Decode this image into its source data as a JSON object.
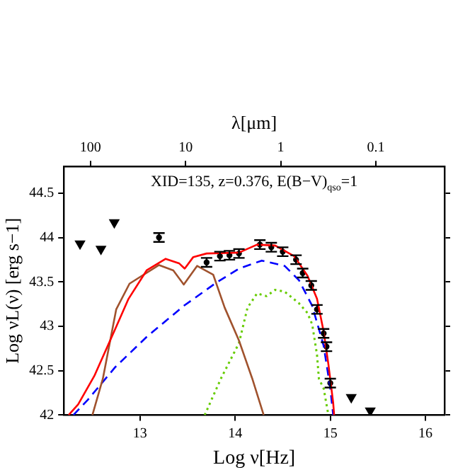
{
  "chart_data": {
    "type": "line",
    "title": "XID=135, z=0.376, E(B−V)$_{qso}$=1",
    "xlabel": "Log ν[Hz]",
    "ylabel": "Log νL(ν) [erg s−1]",
    "x2label": "λ[μm]",
    "xlim": [
      12.2,
      16.2
    ],
    "xticks": [
      13,
      14,
      15,
      16
    ],
    "ylim": [
      42,
      44.8
    ],
    "yticks": [
      42,
      42.5,
      43,
      43.5,
      44,
      44.5
    ],
    "x2lim": [
      190,
      0.019
    ],
    "x2ticks": [
      100,
      10,
      1,
      0.1
    ],
    "log": "x2",
    "grid": false,
    "legend": false,
    "series": [
      {
        "color": "#ff0000",
        "line_style": "solid",
        "marker": "none",
        "x": [
          12.25,
          12.35,
          12.52,
          12.74,
          12.88,
          13.07,
          13.27,
          13.41,
          13.47,
          13.56,
          13.7,
          14.04,
          14.23,
          14.42,
          14.62,
          14.76,
          14.86,
          14.93,
          14.98,
          15.03,
          15.04
        ],
        "values": [
          42.0,
          42.12,
          42.44,
          42.97,
          43.31,
          43.63,
          43.76,
          43.71,
          43.65,
          43.78,
          43.82,
          43.83,
          43.92,
          43.91,
          43.79,
          43.57,
          43.31,
          42.94,
          42.57,
          42.14,
          42.0
        ]
      },
      {
        "color": "#a0522d",
        "line_style": "solid",
        "marker": "none",
        "x": [
          12.5,
          12.61,
          12.75,
          12.89,
          13.2,
          13.35,
          13.46,
          13.6,
          13.77,
          13.89,
          14.04,
          14.18,
          14.3
        ],
        "values": [
          42.0,
          42.41,
          43.19,
          43.48,
          43.69,
          43.63,
          43.47,
          43.68,
          43.58,
          43.21,
          42.84,
          42.41,
          42.0
        ]
      },
      {
        "color": "#0000ff",
        "line_style": "dashed",
        "marker": "none",
        "x": [
          12.3,
          12.45,
          12.74,
          13.07,
          13.46,
          13.8,
          14.04,
          14.28,
          14.52,
          14.67,
          14.81,
          14.93,
          15.0,
          15.03
        ],
        "values": [
          42.0,
          42.17,
          42.54,
          42.88,
          43.23,
          43.49,
          43.65,
          43.74,
          43.68,
          43.52,
          43.23,
          42.78,
          42.3,
          42.0
        ]
      },
      {
        "color": "#66cc00",
        "line_style": "dotted",
        "marker": "none",
        "x": [
          13.68,
          13.85,
          14.04,
          14.13,
          14.23,
          14.33,
          14.42,
          14.52,
          14.67,
          14.76,
          14.81,
          14.86,
          14.88,
          14.93,
          14.98
        ],
        "values": [
          42.0,
          42.41,
          42.81,
          43.21,
          43.37,
          43.34,
          43.41,
          43.39,
          43.26,
          43.15,
          43.02,
          42.68,
          42.41,
          42.3,
          42.0
        ]
      },
      {
        "type": "scatter",
        "color": "#000000",
        "marker": "circle",
        "x": [
          13.2,
          13.7,
          13.84,
          13.94,
          14.04,
          14.26,
          14.38,
          14.5,
          14.64,
          14.71,
          14.8,
          14.86,
          14.93,
          14.96,
          15.0
        ],
        "values": [
          44.0,
          43.72,
          43.79,
          43.8,
          43.82,
          43.92,
          43.89,
          43.84,
          43.75,
          43.6,
          43.46,
          43.19,
          42.92,
          42.77,
          42.36
        ],
        "errors": [
          0.05,
          0.05,
          0.05,
          0.05,
          0.05,
          0.05,
          0.05,
          0.05,
          0.05,
          0.05,
          0.05,
          0.05,
          0.05,
          0.05,
          0.05
        ]
      },
      {
        "type": "scatter",
        "color": "#000000",
        "marker": "triangle",
        "x": [
          12.37,
          12.59,
          12.73,
          15.22,
          15.42
        ],
        "values": [
          43.93,
          43.87,
          44.17,
          42.2,
          42.05
        ]
      }
    ]
  }
}
